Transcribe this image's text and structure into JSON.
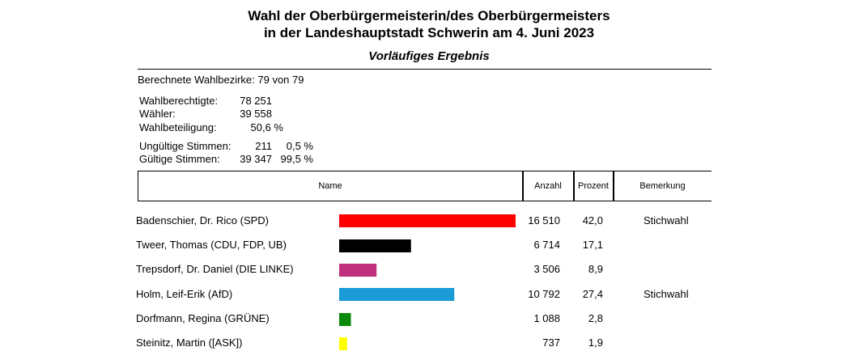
{
  "header": {
    "title_line1": "Wahl der Oberbürgermeisterin/des Oberbürgermeisters",
    "title_line2": "in der Landeshauptstadt Schwerin am 4. Juni 2023",
    "subtitle": "Vorläufiges Ergebnis"
  },
  "stats": {
    "bezirke": "Berechnete Wahlbezirke: 79 von 79",
    "wahlberechtigte_label": "Wahlberechtigte:",
    "wahlberechtigte_value": "78 251",
    "waehler_label": "Wähler:",
    "waehler_value": "39 558",
    "beteiligung_label": "Wahlbeteiligung:",
    "beteiligung_value": "50,6 %",
    "ungueltig_label": "Ungültige Stimmen:",
    "ungueltig_value": "211",
    "ungueltig_pct": "0,5 %",
    "gueltig_label": "Gültige Stimmen:",
    "gueltig_value": "39 347",
    "gueltig_pct": "99,5 %"
  },
  "table_header": {
    "name": "Name",
    "anzahl": "Anzahl",
    "prozent": "Prozent",
    "bemerkung": "Bemerkung"
  },
  "chart_data": {
    "type": "bar",
    "title": "Vorläufiges Ergebnis",
    "xlim": [
      0,
      42.0
    ],
    "categories": [
      "Badenschier, Dr. Rico (SPD)",
      "Tweer, Thomas (CDU, FDP, UB)",
      "Trepsdorf, Dr. Daniel (DIE LINKE)",
      "Holm, Leif-Erik (AfD)",
      "Dorfmann, Regina (GRÜNE)",
      "Steinitz, Martin ([ASK])"
    ],
    "values": [
      42.0,
      17.1,
      8.9,
      27.4,
      2.8,
      1.9
    ],
    "counts": [
      "16 510",
      "6 714",
      "3 506",
      "10 792",
      "1 088",
      "737"
    ],
    "percent_labels": [
      "42,0",
      "17,1",
      "8,9",
      "27,4",
      "2,8",
      "1,9"
    ],
    "remarks": [
      "Stichwahl",
      "",
      "",
      "Stichwahl",
      "",
      ""
    ],
    "colors": [
      "#ff0000",
      "#000000",
      "#c0307a",
      "#1a9ad6",
      "#0a8a0a",
      "#ffff00"
    ]
  }
}
